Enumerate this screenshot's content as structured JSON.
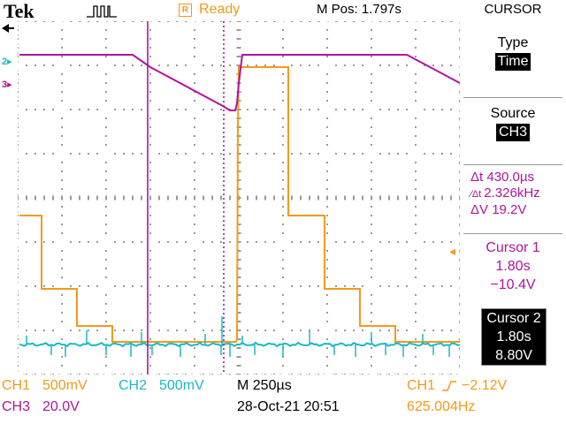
{
  "header": {
    "brand": "Tek",
    "trigger_status": "Ready",
    "status_box_letter": "R",
    "m_pos": "M Pos: 1.797s"
  },
  "menu": {
    "title": "CURSOR",
    "type_label": "Type",
    "type_value": "Time",
    "source_label": "Source",
    "source_value": "CH3",
    "delta_t": "Δt 430.0µs",
    "inv_delta_t": "2.326kHz",
    "delta_v": "ΔV 19.2V",
    "cursor1": {
      "label": "Cursor 1",
      "time": "1.80s",
      "voltage": "−10.4V"
    },
    "cursor2": {
      "label": "Cursor 2",
      "time": "1.80s",
      "voltage": "8.80V"
    }
  },
  "markers": {
    "ch2": "2",
    "ch3": "3"
  },
  "bottom": {
    "ch1": "CH1",
    "ch1_scale": "500mV",
    "ch2": "CH2",
    "ch2_scale": "500mV",
    "ch3": "CH3",
    "ch3_scale": "20.0V",
    "timebase": "M 250µs",
    "date": "28-Oct-21 20:51",
    "trig_source": "CH1",
    "trig_level": "−2.12V",
    "frequency": "625.004Hz"
  },
  "colors": {
    "ch1": "#f39a1a",
    "ch2": "#19b8c8",
    "ch3": "#b1139f"
  }
}
